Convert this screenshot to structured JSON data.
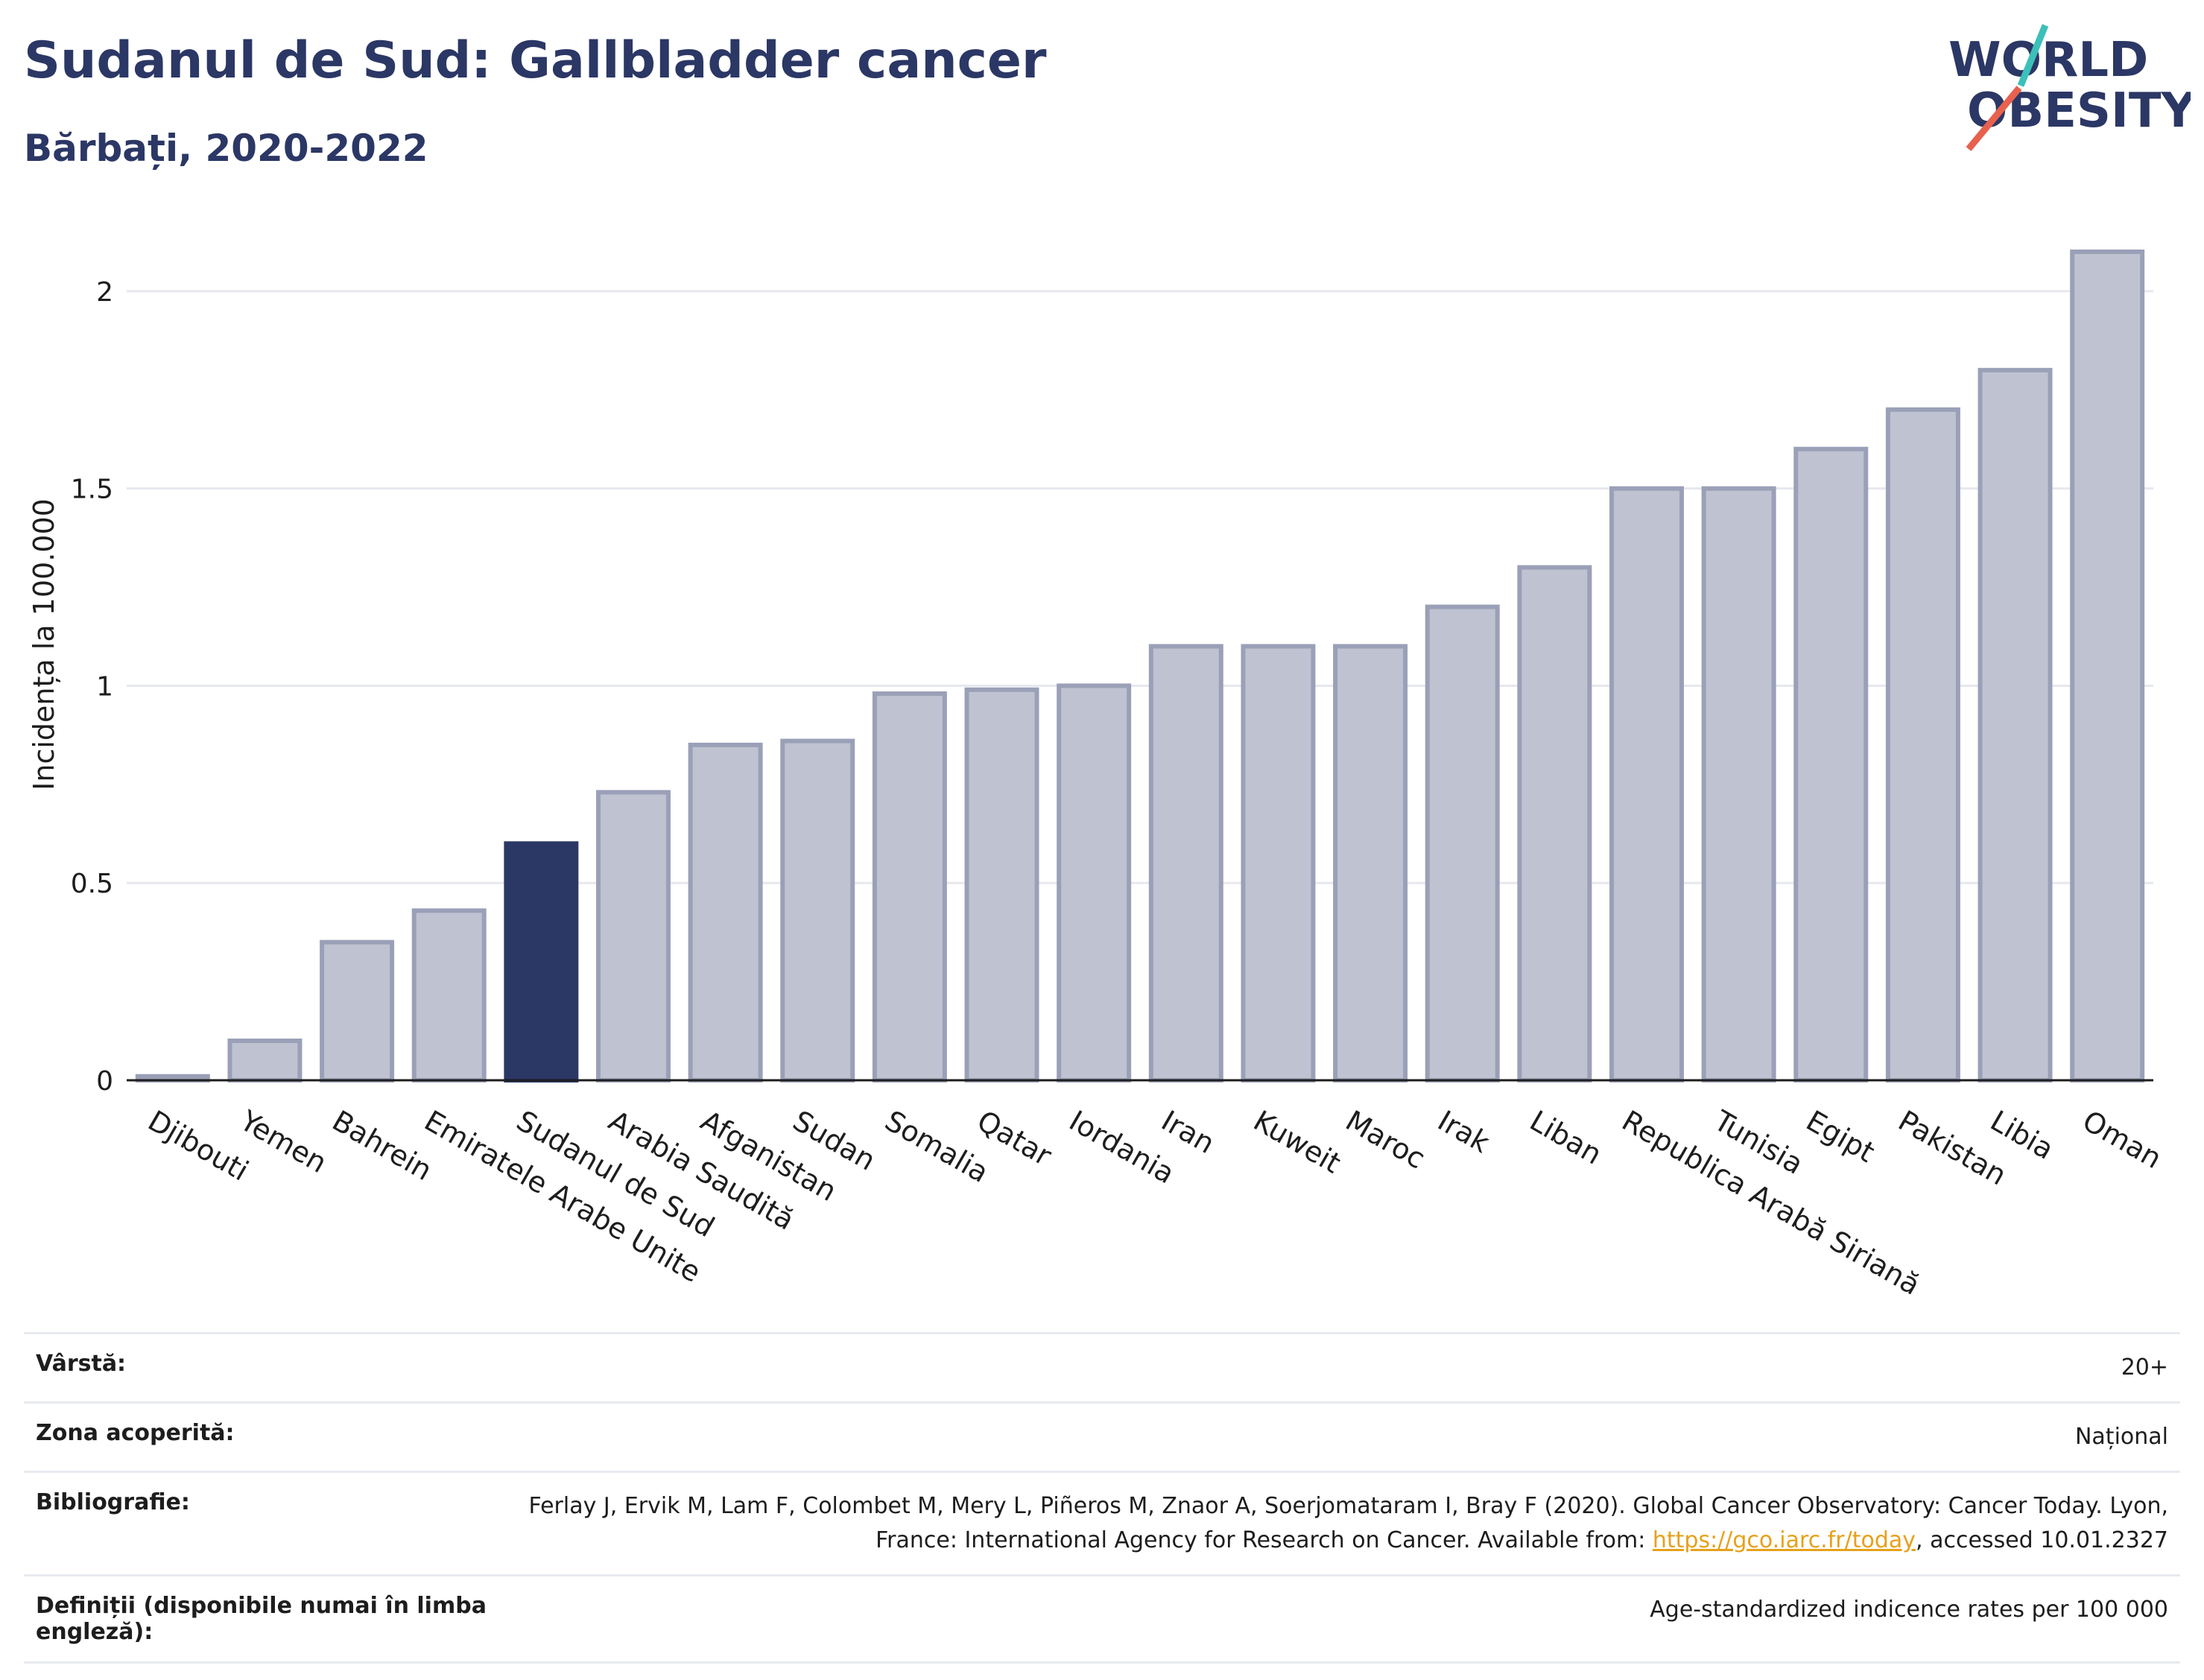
{
  "header": {
    "title": "Sudanul de Sud: Gallbladder cancer",
    "subtitle": "Bărbați, 2020-2022"
  },
  "logo": {
    "line1": "WORLD",
    "line2": "OBESITY"
  },
  "colors": {
    "highlight": "#2b3765",
    "bar_fill": "#bfc3d1",
    "bar_stroke": "#9aa0b7",
    "logo_text": "#2b3765",
    "logo_teal": "#3cc0b9",
    "logo_red": "#e8614f",
    "link": "#e7a11b"
  },
  "chart_data": {
    "type": "bar",
    "ylabel": "Incidența la 100.000",
    "xlabel": "",
    "ylim": [
      0,
      2.2
    ],
    "yticks": [
      0,
      0.5,
      1,
      1.5,
      2
    ],
    "ytick_labels": [
      "0",
      "0.5",
      "1",
      "1.5",
      "2"
    ],
    "grid": true,
    "highlight": "Sudanul de Sud",
    "categories": [
      "Djibouti",
      "Yemen",
      "Bahrein",
      "Emiratele Arabe Unite",
      "Sudanul de Sud",
      "Arabia Saudită",
      "Afganistan",
      "Sudan",
      "Somalia",
      "Qatar",
      "Iordania",
      "Iran",
      "Kuweit",
      "Maroc",
      "Irak",
      "Liban",
      "Republica Arabă Siriană",
      "Tunisia",
      "Egipt",
      "Pakistan",
      "Libia",
      "Oman"
    ],
    "values": [
      0.01,
      0.1,
      0.35,
      0.43,
      0.6,
      0.73,
      0.85,
      0.86,
      0.98,
      0.99,
      1.0,
      1.1,
      1.1,
      1.1,
      1.2,
      1.3,
      1.5,
      1.5,
      1.6,
      1.7,
      1.8,
      2.1
    ]
  },
  "meta": {
    "rows": [
      {
        "key": "Vârstă:",
        "value": "20+"
      },
      {
        "key": "Zona acoperită:",
        "value": "Național"
      },
      {
        "key": "Bibliografie:",
        "value_pre": "Ferlay J, Ervik M, Lam F, Colombet M, Mery L, Piñeros M, Znaor A, Soerjomataram I, Bray F (2020). Global Cancer Observatory: Cancer Today. Lyon, France: International Agency for Research on Cancer. Available from: ",
        "link": "https://gco.iarc.fr/today",
        "value_post": ", accessed 10.01.2327"
      },
      {
        "key": "Definiții (disponibile numai în limba engleză):",
        "value": "Age-standardized indicence rates per 100 000"
      }
    ]
  }
}
